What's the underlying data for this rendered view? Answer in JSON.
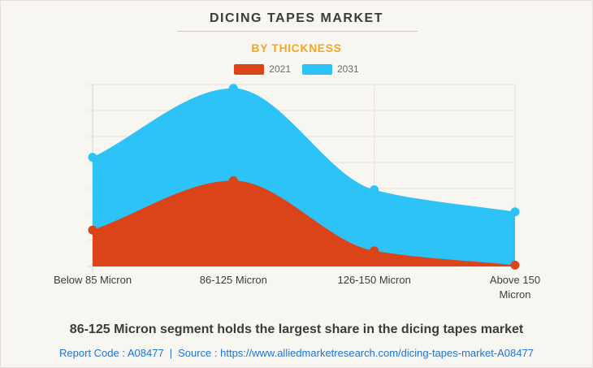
{
  "header": {
    "title": "DICING TAPES MARKET",
    "subtitle": "BY THICKNESS"
  },
  "legend": {
    "items": [
      {
        "label": "2021",
        "color": "#DB4418"
      },
      {
        "label": "2031",
        "color": "#2EC3F7"
      }
    ]
  },
  "chart_data": {
    "type": "area",
    "title": "DICING TAPES MARKET",
    "subtitle": "BY THICKNESS",
    "categories": [
      "Below 85 Micron",
      "86-125 Micron",
      "126-150 Micron",
      "Above 150 Micron"
    ],
    "series": [
      {
        "name": "2021",
        "color": "#DB4418",
        "values": [
          1.4,
          3.3,
          0.6,
          0.05
        ]
      },
      {
        "name": "2031",
        "color": "#2EC3F7",
        "values": [
          4.2,
          6.85,
          2.95,
          2.1
        ]
      }
    ],
    "xlabel": "",
    "ylabel": "",
    "ylim": [
      0,
      7
    ],
    "y_tick_labels_visible": false,
    "grid": true,
    "legend_position": "top",
    "curve": "smooth"
  },
  "footer": {
    "note": "86-125 Micron segment holds the largest share in the dicing tapes market",
    "report_code": "Report Code : A08477",
    "separator": "|",
    "source_prefix": "Source :",
    "source_url": "https://www.alliedmarketresearch.com/dicing-tapes-market-A08477"
  },
  "colors": {
    "background": "#F8F6F1",
    "border": "#E2DFDA",
    "title_text": "#3B3B3B",
    "subtitle_text": "#F6A623",
    "legend_text": "#6B6B6B",
    "gridline": "#E4E1DB",
    "axis_line": "#D8D5CE",
    "x_label_text": "#3C3C3C",
    "footnote_text": "#3B3B3B",
    "link_text": "#1E76D2",
    "series_2021": "#DB4418",
    "series_2031": "#2EC3F7"
  }
}
